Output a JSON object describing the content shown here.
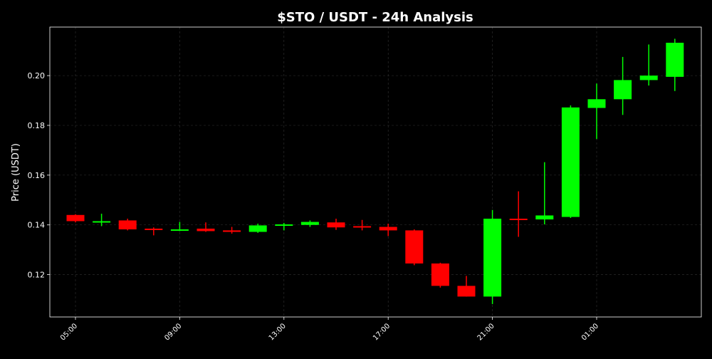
{
  "chart_data": {
    "type": "candlestick",
    "title": "$STO / USDT - 24h Analysis",
    "xlabel": "",
    "ylabel": "Price (USDT)",
    "ylim": [
      0.103,
      0.2195
    ],
    "grid": true,
    "y_ticks": [
      "0.12",
      "0.14",
      "0.16",
      "0.18",
      "0.20"
    ],
    "x_ticks": [
      {
        "label": "05:00",
        "index": 0
      },
      {
        "label": "09:00",
        "index": 4
      },
      {
        "label": "13:00",
        "index": 8
      },
      {
        "label": "17:00",
        "index": 12
      },
      {
        "label": "21:00",
        "index": 16
      },
      {
        "label": "01:00",
        "index": 20
      }
    ],
    "up_color": "#00ff00",
    "down_color": "#ff0000",
    "candles": [
      {
        "time": "05:00",
        "open": 0.144,
        "high": 0.1443,
        "low": 0.141,
        "close": 0.1415
      },
      {
        "time": "06:00",
        "open": 0.141,
        "high": 0.1445,
        "low": 0.1395,
        "close": 0.1415
      },
      {
        "time": "07:00",
        "open": 0.1418,
        "high": 0.1425,
        "low": 0.1378,
        "close": 0.1382
      },
      {
        "time": "08:00",
        "open": 0.1385,
        "high": 0.139,
        "low": 0.1358,
        "close": 0.138
      },
      {
        "time": "09:00",
        "open": 0.138,
        "high": 0.1412,
        "low": 0.1375,
        "close": 0.1382
      },
      {
        "time": "10:00",
        "open": 0.1385,
        "high": 0.141,
        "low": 0.1372,
        "close": 0.1375
      },
      {
        "time": "11:00",
        "open": 0.1378,
        "high": 0.1392,
        "low": 0.1365,
        "close": 0.1372
      },
      {
        "time": "12:00",
        "open": 0.1372,
        "high": 0.1405,
        "low": 0.1368,
        "close": 0.1398
      },
      {
        "time": "13:00",
        "open": 0.1398,
        "high": 0.1408,
        "low": 0.1378,
        "close": 0.1402
      },
      {
        "time": "14:00",
        "open": 0.14,
        "high": 0.1418,
        "low": 0.1392,
        "close": 0.1412
      },
      {
        "time": "15:00",
        "open": 0.141,
        "high": 0.1425,
        "low": 0.138,
        "close": 0.139
      },
      {
        "time": "16:00",
        "open": 0.1395,
        "high": 0.142,
        "low": 0.1378,
        "close": 0.139
      },
      {
        "time": "17:00",
        "open": 0.1392,
        "high": 0.1405,
        "low": 0.1355,
        "close": 0.1378
      },
      {
        "time": "18:00",
        "open": 0.1378,
        "high": 0.1382,
        "low": 0.1238,
        "close": 0.1245
      },
      {
        "time": "19:00",
        "open": 0.1245,
        "high": 0.1248,
        "low": 0.1148,
        "close": 0.1155
      },
      {
        "time": "20:00",
        "open": 0.1155,
        "high": 0.1195,
        "low": 0.1112,
        "close": 0.1112
      },
      {
        "time": "21:00",
        "open": 0.1112,
        "high": 0.146,
        "low": 0.1082,
        "close": 0.1425
      },
      {
        "time": "22:00",
        "open": 0.1425,
        "high": 0.1535,
        "low": 0.1352,
        "close": 0.142
      },
      {
        "time": "23:00",
        "open": 0.1422,
        "high": 0.1652,
        "low": 0.1402,
        "close": 0.1438
      },
      {
        "time": "00:00",
        "open": 0.1432,
        "high": 0.188,
        "low": 0.1428,
        "close": 0.1872
      },
      {
        "time": "01:00",
        "open": 0.187,
        "high": 0.1968,
        "low": 0.1745,
        "close": 0.1905
      },
      {
        "time": "02:00",
        "open": 0.1905,
        "high": 0.2075,
        "low": 0.1842,
        "close": 0.1982
      },
      {
        "time": "03:00",
        "open": 0.1982,
        "high": 0.2125,
        "low": 0.196,
        "close": 0.2
      },
      {
        "time": "04:00",
        "open": 0.1995,
        "high": 0.2148,
        "low": 0.1938,
        "close": 0.2132
      }
    ]
  }
}
